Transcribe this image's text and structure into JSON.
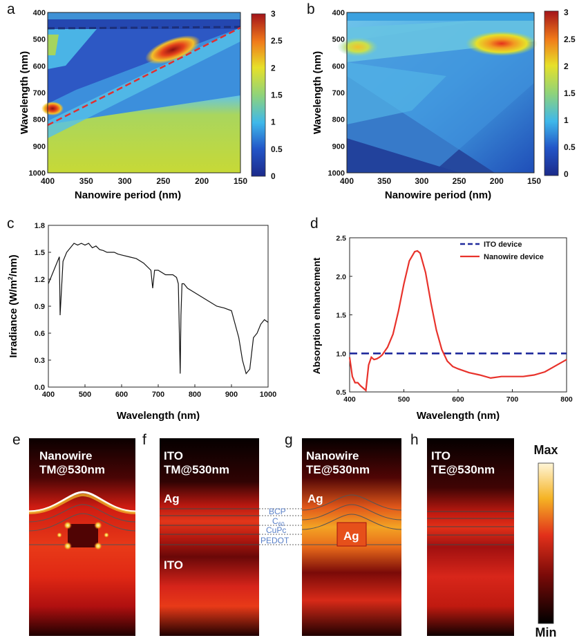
{
  "panels": {
    "a": "a",
    "b": "b",
    "c": "c",
    "d": "d",
    "e": "e",
    "f": "f",
    "g": "g",
    "h": "h"
  },
  "heatmaps": {
    "x_axis_label": "Nanowire period (nm)",
    "y_axis_label": "Wavelength (nm)",
    "x_ticks": [
      "400",
      "350",
      "300",
      "250",
      "200",
      "150"
    ],
    "y_ticks": [
      "400",
      "500",
      "600",
      "700",
      "800",
      "900",
      "1000"
    ],
    "colorbar_ticks": [
      "3",
      "2.5",
      "2",
      "1.5",
      "1",
      "0.5",
      "0"
    ]
  },
  "chart_data": [
    {
      "panel": "a",
      "type": "heatmap",
      "xlabel": "Nanowire period (nm)",
      "ylabel": "Wavelength (nm)",
      "xlim": [
        400,
        150
      ],
      "ylim": [
        1000,
        400
      ],
      "zlim": [
        0,
        3
      ],
      "colormap": "jet",
      "overlays": [
        {
          "style": "dashed",
          "color": "#1c2f7a",
          "x": [
            400,
            150
          ],
          "y": [
            450,
            445
          ]
        },
        {
          "style": "dashed",
          "color": "#e03030",
          "x": [
            400,
            150
          ],
          "y": [
            820,
            450
          ]
        }
      ],
      "hotspots": [
        {
          "x": 240,
          "y": 545,
          "value": 2.9
        },
        {
          "x": 395,
          "y": 760,
          "value": 2.9
        }
      ]
    },
    {
      "panel": "b",
      "type": "heatmap",
      "xlabel": "Nanowire period (nm)",
      "ylabel": "Wavelength (nm)",
      "xlim": [
        400,
        150
      ],
      "ylim": [
        1000,
        400
      ],
      "zlim": [
        0,
        3
      ],
      "colormap": "jet",
      "hotspots": [
        {
          "x": 395,
          "y": 525,
          "value": 2.0
        },
        {
          "x": 170,
          "y": 520,
          "value": 2.6
        }
      ]
    },
    {
      "panel": "c",
      "type": "line",
      "xlabel": "Wavelength (nm)",
      "ylabel": "Irradiance (W/m²/nm)",
      "ylabel_parts": [
        "Irradiance (W/m",
        "2",
        "/nm)"
      ],
      "xlim": [
        400,
        1000
      ],
      "ylim": [
        0.0,
        1.8
      ],
      "xticks": [
        "400",
        "500",
        "600",
        "700",
        "800",
        "900",
        "1000"
      ],
      "yticks": [
        "0.0",
        "0.3",
        "0.6",
        "0.9",
        "1.2",
        "1.5",
        "1.8"
      ],
      "series": [
        {
          "color": "#111111",
          "x": [
            400,
            410,
            420,
            430,
            432,
            440,
            450,
            460,
            470,
            480,
            490,
            500,
            510,
            520,
            530,
            540,
            550,
            560,
            570,
            580,
            590,
            600,
            620,
            640,
            660,
            680,
            685,
            690,
            700,
            720,
            740,
            750,
            755,
            760,
            762,
            765,
            770,
            780,
            800,
            820,
            840,
            860,
            880,
            900,
            910,
            920,
            930,
            940,
            950,
            960,
            970,
            980,
            990,
            1000
          ],
          "y": [
            1.15,
            1.25,
            1.35,
            1.45,
            0.8,
            1.4,
            1.5,
            1.55,
            1.6,
            1.58,
            1.6,
            1.58,
            1.6,
            1.55,
            1.57,
            1.53,
            1.52,
            1.5,
            1.5,
            1.5,
            1.48,
            1.47,
            1.45,
            1.43,
            1.38,
            1.3,
            1.1,
            1.3,
            1.3,
            1.25,
            1.25,
            1.22,
            1.15,
            0.15,
            0.8,
            1.15,
            1.15,
            1.1,
            1.05,
            1.0,
            0.95,
            0.9,
            0.88,
            0.85,
            0.7,
            0.55,
            0.3,
            0.15,
            0.2,
            0.55,
            0.6,
            0.7,
            0.75,
            0.72
          ]
        }
      ]
    },
    {
      "panel": "d",
      "type": "line",
      "xlabel": "Wavelength (nm)",
      "ylabel": "Absorption enhancement",
      "xlim": [
        400,
        800
      ],
      "ylim": [
        0.5,
        2.5
      ],
      "xticks": [
        "400",
        "500",
        "600",
        "700",
        "800"
      ],
      "yticks": [
        "0.5",
        "1.0",
        "1.5",
        "2.0",
        "2.5"
      ],
      "legend": "top-right",
      "series": [
        {
          "name": "ITO device",
          "color": "#1f2a9c",
          "style": "dashed",
          "x": [
            400,
            800
          ],
          "y": [
            1.0,
            1.0
          ]
        },
        {
          "name": "Nanowire device",
          "color": "#e8322b",
          "style": "solid",
          "x": [
            400,
            405,
            410,
            415,
            420,
            425,
            430,
            435,
            440,
            445,
            450,
            455,
            460,
            470,
            480,
            490,
            500,
            510,
            520,
            525,
            530,
            540,
            550,
            560,
            570,
            580,
            590,
            600,
            620,
            640,
            660,
            680,
            700,
            720,
            740,
            760,
            780,
            800
          ],
          "y": [
            0.95,
            0.7,
            0.62,
            0.62,
            0.58,
            0.55,
            0.52,
            0.85,
            0.95,
            0.92,
            0.93,
            0.95,
            0.98,
            1.08,
            1.25,
            1.55,
            1.9,
            2.2,
            2.32,
            2.33,
            2.3,
            2.05,
            1.65,
            1.3,
            1.05,
            0.9,
            0.83,
            0.8,
            0.75,
            0.72,
            0.68,
            0.7,
            0.7,
            0.7,
            0.72,
            0.76,
            0.84,
            0.92
          ]
        }
      ]
    }
  ],
  "fields": {
    "e": {
      "line1": "Nanowire",
      "line2": "TM@530nm"
    },
    "f": {
      "line1": "ITO",
      "line2": "TM@530nm",
      "ag": "Ag",
      "ito": "ITO"
    },
    "g": {
      "line1": "Nanowire",
      "line2": "TE@530nm",
      "ag": "Ag",
      "ag_center": "Ag"
    },
    "h": {
      "line1": "ITO",
      "line2": "TE@530nm"
    },
    "layers": [
      "BCP",
      "C",
      "60",
      "CuPc",
      "PEDOT"
    ],
    "scale": {
      "max": "Max",
      "min": "Min"
    }
  }
}
